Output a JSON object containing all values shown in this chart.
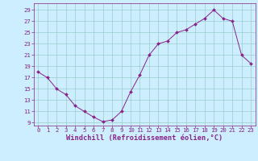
{
  "x": [
    0,
    1,
    2,
    3,
    4,
    5,
    6,
    7,
    8,
    9,
    10,
    11,
    12,
    13,
    14,
    15,
    16,
    17,
    18,
    19,
    20,
    21,
    22,
    23
  ],
  "y": [
    18,
    17,
    15,
    14,
    12,
    11,
    10,
    9.2,
    9.5,
    11,
    14.5,
    17.5,
    21,
    23,
    23.5,
    25,
    25.5,
    26.5,
    27.5,
    29,
    27.5,
    27,
    21,
    19.5
  ],
  "line_color": "#882288",
  "marker": "D",
  "marker_size": 2.0,
  "bg_color": "#cceeff",
  "grid_color": "#99cccc",
  "xlabel": "Windchill (Refroidissement éolien,°C)",
  "xlabel_color": "#882288",
  "ytick_labels": [
    "9",
    "11",
    "13",
    "15",
    "17",
    "19",
    "21",
    "23",
    "25",
    "27",
    "29"
  ],
  "ytick_vals": [
    9,
    11,
    13,
    15,
    17,
    19,
    21,
    23,
    25,
    27,
    29
  ],
  "xtick_vals": [
    0,
    1,
    2,
    3,
    4,
    5,
    6,
    7,
    8,
    9,
    10,
    11,
    12,
    13,
    14,
    15,
    16,
    17,
    18,
    19,
    20,
    21,
    22,
    23
  ],
  "ylim": [
    8.5,
    30.2
  ],
  "xlim": [
    -0.5,
    23.5
  ],
  "tick_color": "#882288",
  "tick_fontsize": 5.2,
  "xlabel_fontsize": 6.2
}
